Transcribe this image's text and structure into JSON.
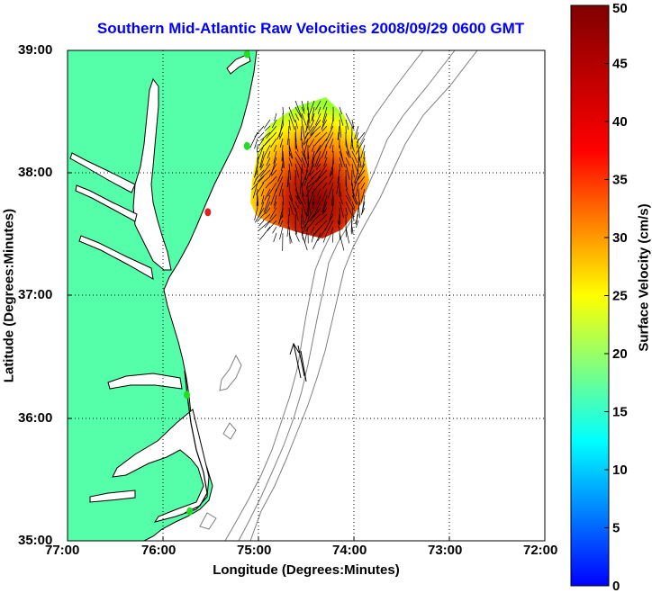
{
  "title": "Southern Mid-Atlantic Raw Velocities 2008/09/29 0600 GMT",
  "xlabel": "Longitude (Degrees:Minutes)",
  "ylabel": "Latitude (Degrees:Minutes)",
  "xticks": [
    "77:00",
    "76:00",
    "75:00",
    "74:00",
    "73:00",
    "72:00"
  ],
  "yticks": [
    "39:00",
    "38:00",
    "37:00",
    "36:00",
    "35:00"
  ],
  "colorbar": {
    "label": "Surface Velocity (cm/s)",
    "ticks": [
      "50",
      "45",
      "40",
      "35",
      "30",
      "25",
      "20",
      "15",
      "10",
      "5",
      "0"
    ],
    "range": [
      0,
      50
    ]
  },
  "colors": {
    "land": "#55ffaa",
    "coastline": "#000000",
    "bathymetry": "#808080",
    "title": "#0000ff",
    "station_active": "#22dd22",
    "station_inactive": "#dd2222"
  },
  "chart_data": {
    "type": "map",
    "xlim": [
      -77,
      -72
    ],
    "ylim": [
      35,
      39
    ],
    "grid": true,
    "stations": [
      {
        "lon": -75.12,
        "lat": 38.97,
        "status": "active"
      },
      {
        "lon": -75.12,
        "lat": 38.22,
        "status": "active"
      },
      {
        "lon": -75.53,
        "lat": 37.68,
        "status": "inactive"
      },
      {
        "lon": -75.75,
        "lat": 36.19,
        "status": "active"
      },
      {
        "lon": -75.72,
        "lat": 35.24,
        "status": "active"
      }
    ],
    "reference_vector": {
      "lon": -74.55,
      "lat": 36.3,
      "speed_cm_s": 50,
      "direction": "N"
    }
  }
}
